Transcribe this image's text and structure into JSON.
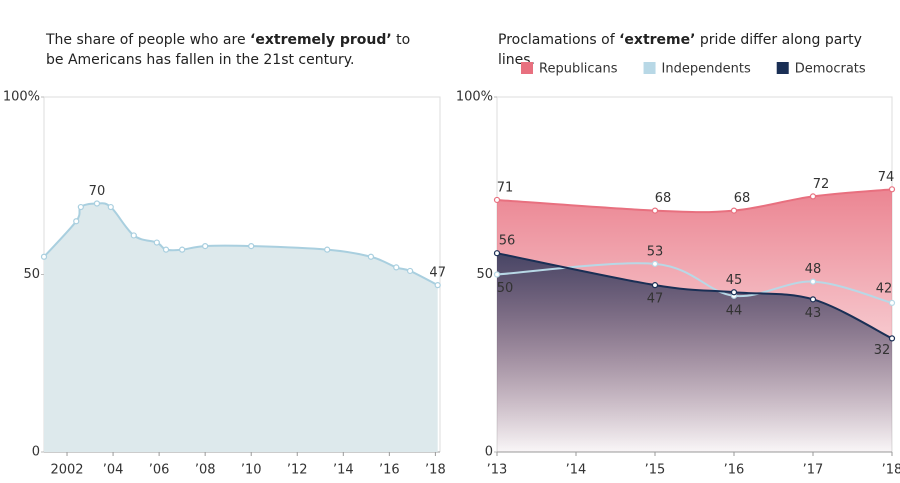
{
  "chart_data": [
    {
      "type": "area",
      "title": [
        {
          "text": "The share of people who are "
        },
        {
          "text": "‘extremely proud’",
          "bold": true
        },
        {
          "text": " to be Americans has fallen in the 21st century."
        }
      ],
      "x": [
        2001,
        2002.4,
        2002.6,
        2003.3,
        2003.9,
        2004.9,
        2005.9,
        2006.3,
        2007,
        2008,
        2010,
        2013.3,
        2015.2,
        2016.3,
        2016.9,
        2018.1
      ],
      "values": [
        55,
        65,
        69,
        70,
        69,
        61,
        59,
        57,
        57,
        58,
        58,
        57,
        55,
        52,
        51,
        47
      ],
      "color": "#a9cfdf",
      "fill": "#dde9ec",
      "labeled_points": [
        3,
        15
      ],
      "xlim": [
        2001,
        2018.2
      ],
      "xticks": [
        2002,
        {
          "value": 2004,
          "label": "’04"
        },
        {
          "value": 2006,
          "label": "’06"
        },
        {
          "value": 2008,
          "label": "’08"
        },
        {
          "value": 2010,
          "label": "’10"
        },
        {
          "value": 2012,
          "label": "’12"
        },
        {
          "value": 2014,
          "label": "’14"
        },
        {
          "value": 2016,
          "label": "’16"
        },
        {
          "value": 2018,
          "label": "’18"
        }
      ],
      "ylim": [
        0,
        100
      ],
      "yticks": [
        0,
        50,
        {
          "value": 100,
          "label": "100%"
        }
      ]
    },
    {
      "type": "area",
      "title": [
        {
          "text": "Proclamations of "
        },
        {
          "text": "‘extreme’",
          "bold": true
        },
        {
          "text": " pride differ along party lines."
        }
      ],
      "x": [
        2013,
        2015,
        2016,
        2017,
        2018
      ],
      "series": [
        {
          "name": "Republicans",
          "color": "#e8707f",
          "fill": "#e8707f",
          "values": [
            71,
            68,
            68,
            72,
            74
          ]
        },
        {
          "name": "Independents",
          "color": "#b8d8e6",
          "values": [
            50,
            53,
            44,
            48,
            42
          ]
        },
        {
          "name": "Democrats",
          "color": "#1a2f55",
          "fill": "#2a3559",
          "values": [
            56,
            47,
            45,
            43,
            32
          ]
        }
      ],
      "xlim": [
        2013,
        2018
      ],
      "xticks": [
        {
          "value": 2013,
          "label": "’13"
        },
        {
          "value": 2014,
          "label": "’14"
        },
        {
          "value": 2015,
          "label": "’15"
        },
        {
          "value": 2016,
          "label": "’16"
        },
        {
          "value": 2017,
          "label": "’17"
        },
        {
          "value": 2018,
          "label": "’18"
        }
      ],
      "ylim": [
        0,
        100
      ],
      "yticks": [
        0,
        50,
        {
          "value": 100,
          "label": "100%"
        }
      ],
      "legend": "top"
    }
  ]
}
